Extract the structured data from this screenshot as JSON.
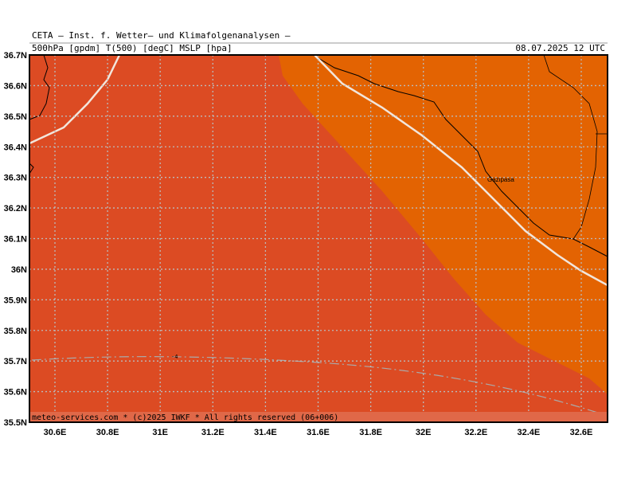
{
  "header": {
    "title": "CETA – Inst. f. Wetter– und Klimafolgenanalysen –",
    "parameters": "500hPa [gpdm] T(500) [degC] MSLP [hpa]",
    "valid_time": "08.07.2025 12 UTC"
  },
  "map": {
    "lat_labels": [
      "36.7N",
      "36.6N",
      "36.5N",
      "36.4N",
      "36.3N",
      "36.2N",
      "36.1N",
      "36N",
      "35.9N",
      "35.8N",
      "35.7N",
      "35.6N",
      "35.5N"
    ],
    "lon_labels": [
      "30.6E",
      "30.8E",
      "31E",
      "31.2E",
      "31.4E",
      "31.6E",
      "31.8E",
      "32E",
      "32.2E",
      "32.4E",
      "32.6E"
    ],
    "place": "Gazipasa",
    "contour_label": "-4"
  },
  "footer": "meteo-services.com * (c)2025 IWKF * All rights reserved (06+006)"
}
